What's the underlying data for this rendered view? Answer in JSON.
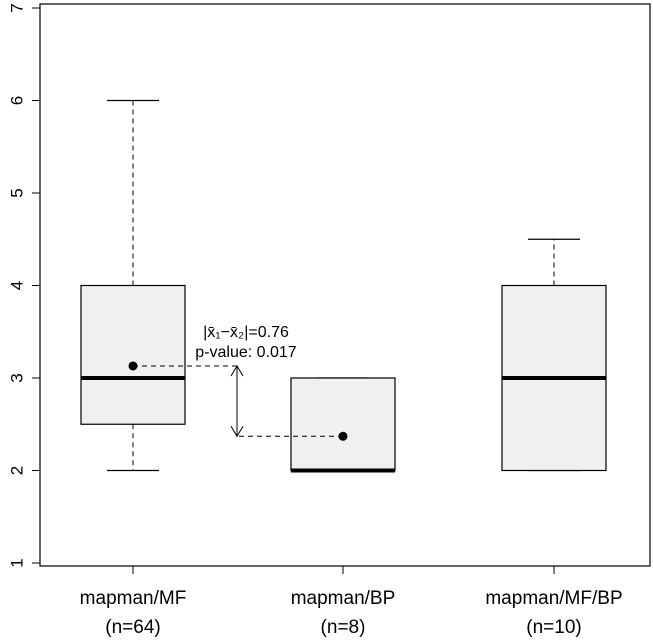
{
  "chart_data": {
    "type": "box",
    "categories": [
      "mapman/MF",
      "mapman/BP",
      "mapman/MF/BP"
    ],
    "category_counts": [
      "(n=64)",
      "(n=8)",
      "(n=10)"
    ],
    "series": [
      {
        "whisker_low": 2,
        "q1": 2.5,
        "median": 3,
        "q3": 4,
        "whisker_high": 6,
        "mean": 3.13
      },
      {
        "whisker_low": 2,
        "q1": 2,
        "median": 2,
        "q3": 3,
        "whisker_high": 3,
        "mean": 2.37
      },
      {
        "whisker_low": 2,
        "q1": 2,
        "median": 3,
        "q3": 4,
        "whisker_high": 4.5,
        "mean": null
      }
    ],
    "box_color": "#f0f0f0",
    "annotation": [
      "|x̄₁−x̄₂|=0.76",
      "p-value: 0.017"
    ],
    "ylim": [
      1,
      7
    ],
    "yticks": [
      1,
      2,
      3,
      4,
      5,
      6,
      7
    ]
  }
}
